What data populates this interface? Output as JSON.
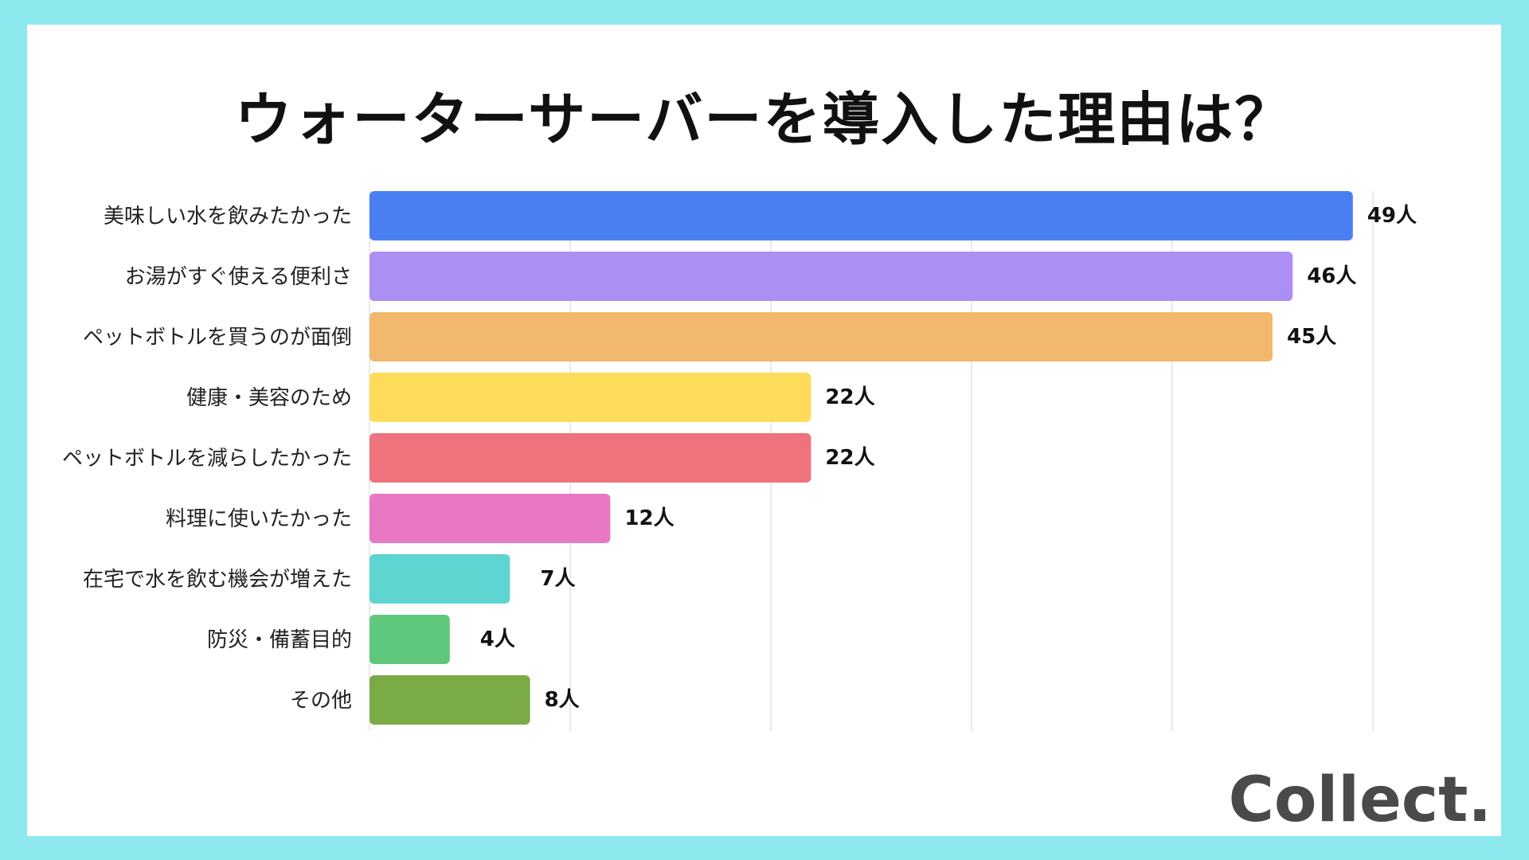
{
  "title": "ウォーターサーバーを導入した理由は？",
  "logo": "Collect.",
  "chart_data": {
    "type": "bar",
    "orientation": "horizontal",
    "categories": [
      "美味しい水を飲みたかった",
      "お湯がすぐ使える便利さ",
      "ペットボトルを買うのが面倒",
      "健康・美容のため",
      "ペットボトルを減らしたかった",
      "料理に使いたかった",
      "在宅で水を飲む機会が増えた",
      "防災・備蓄目的",
      "その他"
    ],
    "values": [
      49,
      46,
      45,
      22,
      22,
      12,
      7,
      4,
      8
    ],
    "value_labels": [
      "49人",
      "46人",
      "45人",
      "22人",
      "22人",
      "12人",
      "7人",
      "4人",
      "8人"
    ],
    "colors": [
      "#4a7ff2",
      "#ac8ff2",
      "#f2b86e",
      "#fddc59",
      "#ee737c",
      "#e878c4",
      "#5fd5d2",
      "#60c87c",
      "#7aab45"
    ],
    "xlim": [
      0,
      50
    ],
    "grid": true,
    "xlabel": "",
    "ylabel": ""
  }
}
